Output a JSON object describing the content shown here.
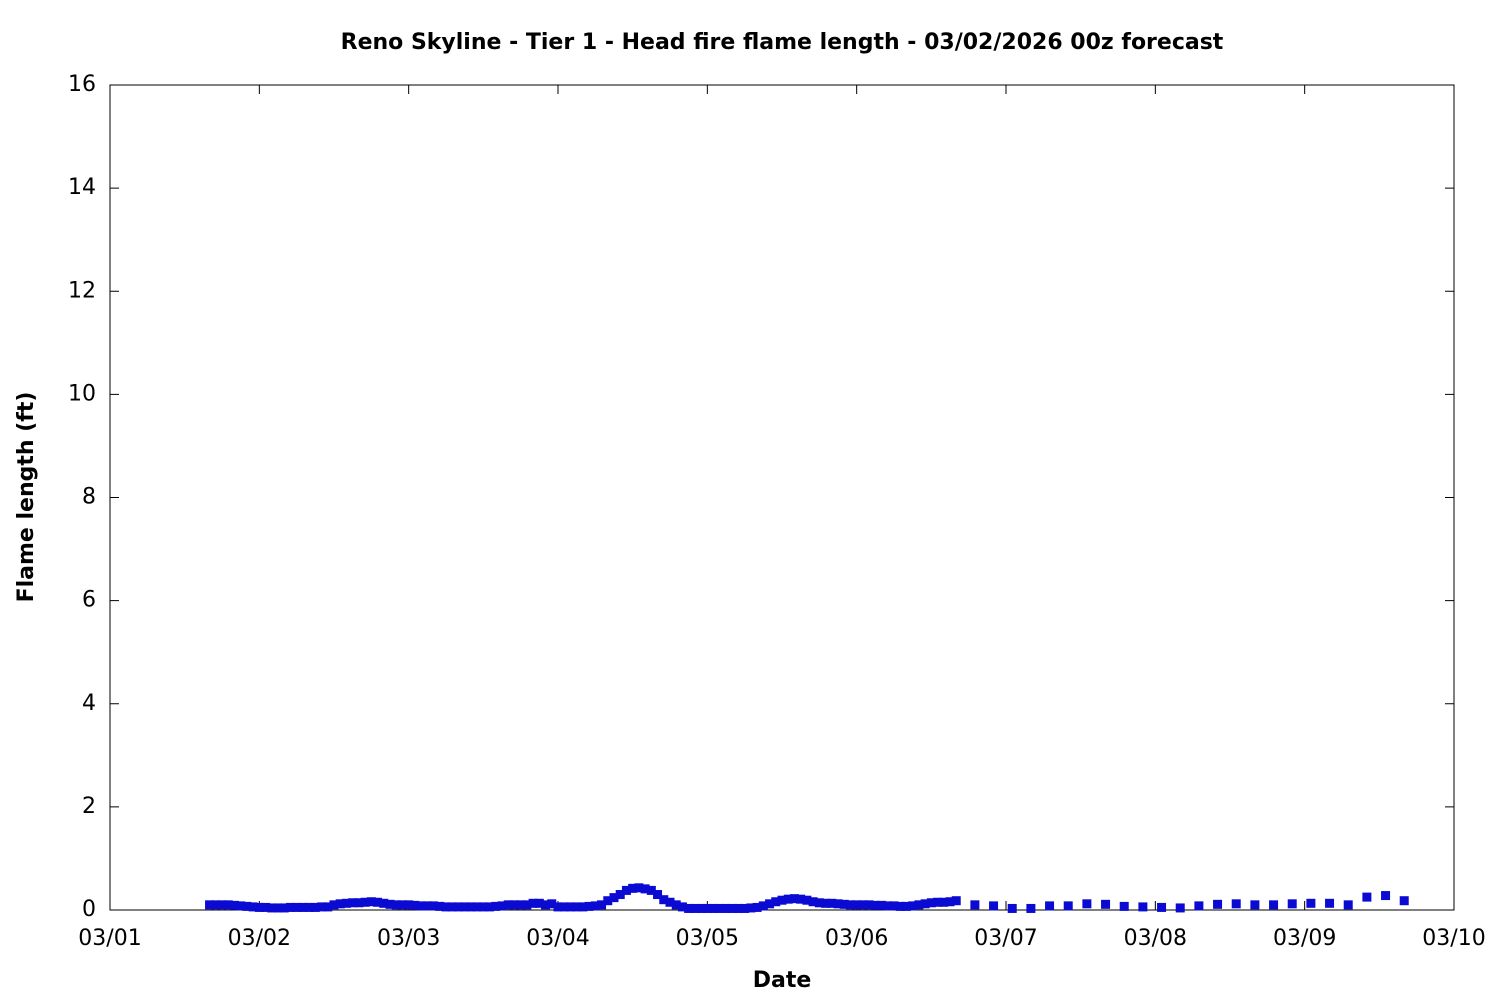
{
  "chart_data": {
    "type": "scatter",
    "title": "Reno Skyline - Tier 1 - Head fire flame length - 03/02/2026 00z forecast",
    "x_label": "Date",
    "y_label": "Flame length (ft)",
    "xlim": [
      0,
      216
    ],
    "xticks": [
      {
        "value": 0,
        "label": "03/01"
      },
      {
        "value": 24,
        "label": "03/02"
      },
      {
        "value": 48,
        "label": "03/03"
      },
      {
        "value": 72,
        "label": "03/04"
      },
      {
        "value": 96,
        "label": "03/05"
      },
      {
        "value": 120,
        "label": "03/06"
      },
      {
        "value": 144,
        "label": "03/07"
      },
      {
        "value": 168,
        "label": "03/08"
      },
      {
        "value": 192,
        "label": "03/09"
      },
      {
        "value": 216,
        "label": "03/10"
      }
    ],
    "ylim": [
      0,
      16
    ],
    "yticks": [
      0,
      2,
      4,
      6,
      8,
      10,
      12,
      14,
      16
    ],
    "color": "#0a0ad2",
    "x": [
      16,
      17,
      18,
      19,
      20,
      21,
      22,
      23,
      24,
      25,
      26,
      27,
      28,
      29,
      30,
      31,
      32,
      33,
      34,
      35,
      36,
      37,
      38,
      39,
      40,
      41,
      42,
      43,
      44,
      45,
      46,
      47,
      48,
      49,
      50,
      51,
      52,
      53,
      54,
      55,
      56,
      57,
      58,
      59,
      60,
      61,
      62,
      63,
      64,
      65,
      66,
      67,
      68,
      69,
      70,
      71,
      72,
      73,
      74,
      75,
      76,
      77,
      78,
      79,
      80,
      81,
      82,
      83,
      84,
      85,
      86,
      87,
      88,
      89,
      90,
      91,
      92,
      93,
      94,
      95,
      96,
      97,
      98,
      99,
      100,
      101,
      102,
      103,
      104,
      105,
      106,
      107,
      108,
      109,
      110,
      111,
      112,
      113,
      114,
      115,
      116,
      117,
      118,
      119,
      120,
      121,
      122,
      123,
      124,
      125,
      126,
      127,
      128,
      129,
      130,
      131,
      132,
      133,
      134,
      135,
      136,
      139,
      142,
      145,
      148,
      151,
      154,
      157,
      160,
      163,
      166,
      169,
      172,
      175,
      178,
      181,
      184,
      187,
      190,
      193,
      196,
      199,
      202,
      205,
      208
    ],
    "values": [
      0.1,
      0.1,
      0.1,
      0.1,
      0.09,
      0.08,
      0.07,
      0.06,
      0.05,
      0.05,
      0.04,
      0.04,
      0.04,
      0.05,
      0.05,
      0.05,
      0.05,
      0.05,
      0.06,
      0.06,
      0.1,
      0.12,
      0.13,
      0.14,
      0.14,
      0.15,
      0.16,
      0.15,
      0.13,
      0.11,
      0.1,
      0.1,
      0.1,
      0.09,
      0.08,
      0.08,
      0.08,
      0.07,
      0.06,
      0.06,
      0.06,
      0.06,
      0.06,
      0.06,
      0.06,
      0.06,
      0.07,
      0.08,
      0.1,
      0.1,
      0.1,
      0.1,
      0.13,
      0.13,
      0.1,
      0.12,
      0.06,
      0.06,
      0.06,
      0.06,
      0.06,
      0.07,
      0.08,
      0.1,
      0.18,
      0.24,
      0.3,
      0.38,
      0.42,
      0.43,
      0.41,
      0.38,
      0.3,
      0.2,
      0.15,
      0.1,
      0.06,
      0.03,
      0.03,
      0.03,
      0.03,
      0.03,
      0.03,
      0.03,
      0.03,
      0.03,
      0.03,
      0.04,
      0.05,
      0.08,
      0.12,
      0.16,
      0.19,
      0.21,
      0.22,
      0.21,
      0.19,
      0.16,
      0.14,
      0.13,
      0.13,
      0.12,
      0.11,
      0.1,
      0.1,
      0.1,
      0.1,
      0.09,
      0.09,
      0.08,
      0.08,
      0.07,
      0.07,
      0.08,
      0.1,
      0.12,
      0.14,
      0.15,
      0.15,
      0.16,
      0.18,
      0.1,
      0.08,
      0.03,
      0.03,
      0.08,
      0.08,
      0.12,
      0.11,
      0.07,
      0.06,
      0.05,
      0.04,
      0.08,
      0.11,
      0.12,
      0.1,
      0.1,
      0.12,
      0.13,
      0.13,
      0.1,
      0.25,
      0.28,
      0.18
    ]
  }
}
